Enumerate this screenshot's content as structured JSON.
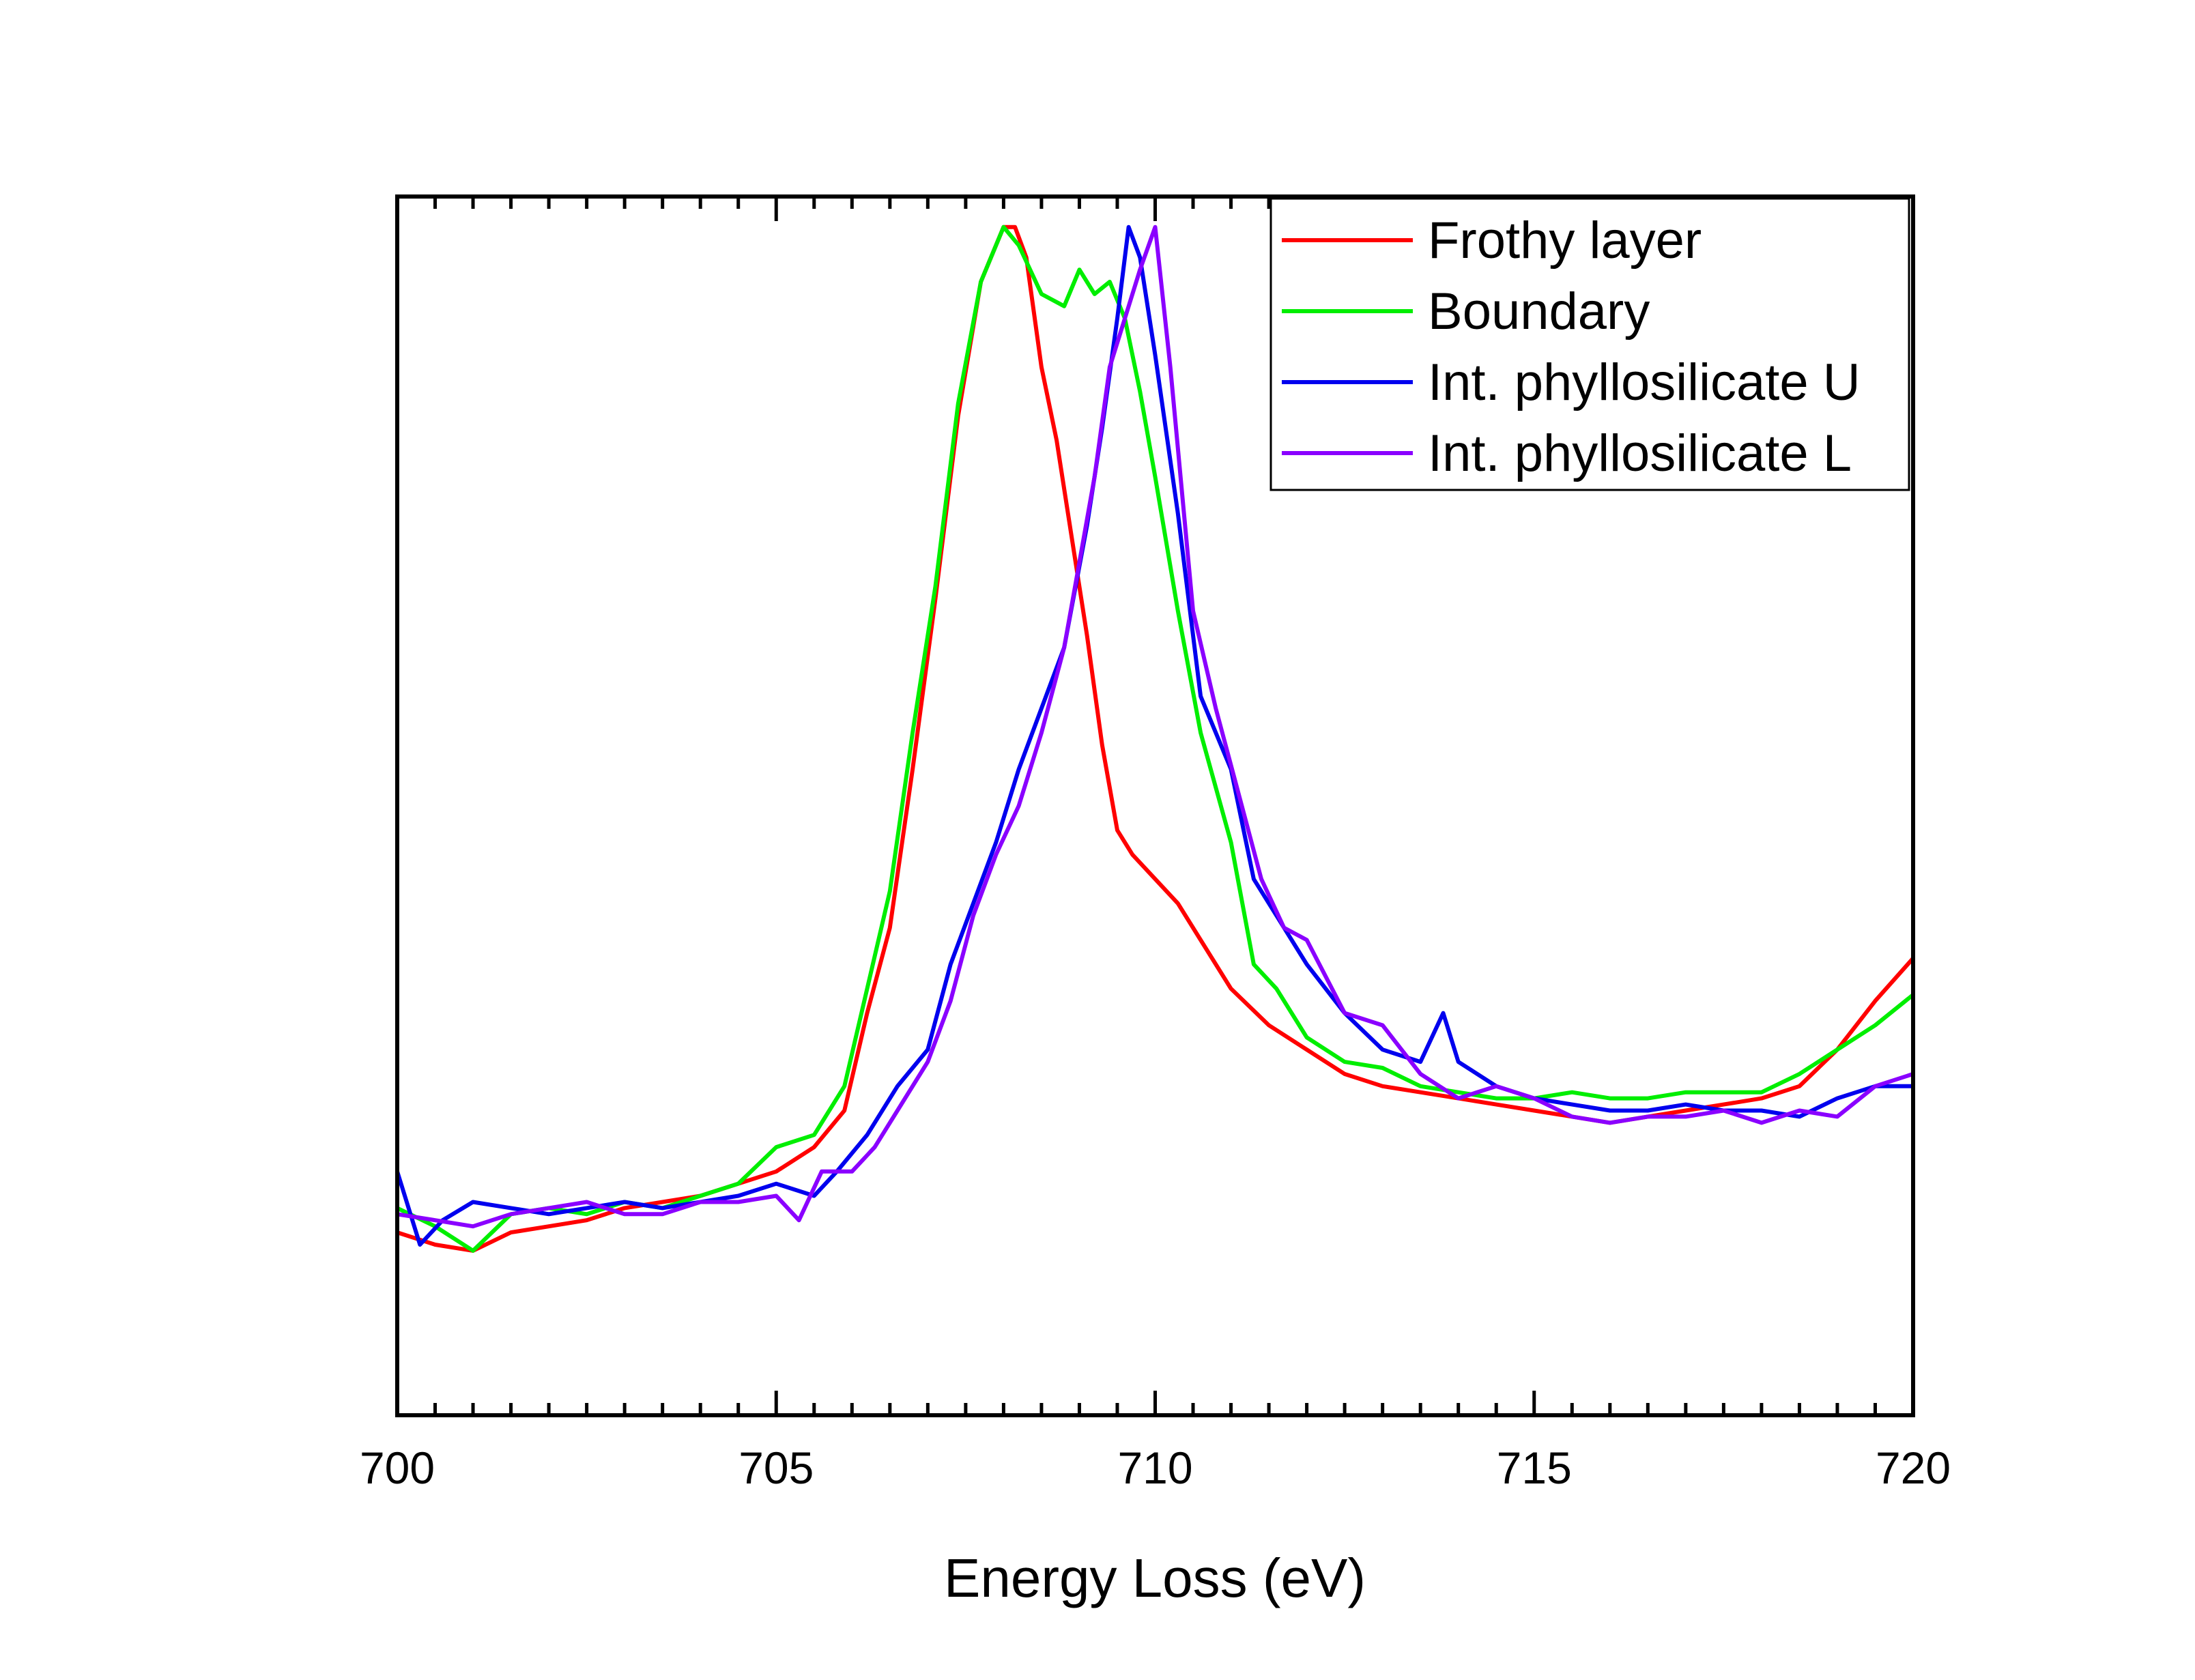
{
  "chart_data": {
    "type": "line",
    "title": "",
    "xlabel": "Energy Loss (eV)",
    "ylabel": "",
    "xlim": [
      700,
      720
    ],
    "ylim": [
      0,
      1
    ],
    "x_ticks": [
      "700",
      "705",
      "710",
      "715",
      "720"
    ],
    "x_tick_values": [
      700,
      705,
      710,
      715,
      720
    ],
    "grid": false,
    "legend_position": "top-right",
    "series": [
      {
        "name": "Frothy layer",
        "color": "#ff0000",
        "points": [
          [
            700,
            0.15
          ],
          [
            700.5,
            0.14
          ],
          [
            701,
            0.135
          ],
          [
            701.5,
            0.15
          ],
          [
            702,
            0.155
          ],
          [
            702.5,
            0.16
          ],
          [
            703,
            0.17
          ],
          [
            703.5,
            0.175
          ],
          [
            704,
            0.18
          ],
          [
            704.5,
            0.19
          ],
          [
            705,
            0.2
          ],
          [
            705.5,
            0.22
          ],
          [
            705.9,
            0.25
          ],
          [
            706.2,
            0.33
          ],
          [
            706.5,
            0.4
          ],
          [
            706.8,
            0.53
          ],
          [
            707.1,
            0.67
          ],
          [
            707.4,
            0.82
          ],
          [
            707.7,
            0.93
          ],
          [
            708.0,
            0.975
          ],
          [
            708.15,
            0.975
          ],
          [
            708.3,
            0.95
          ],
          [
            708.5,
            0.86
          ],
          [
            708.7,
            0.8
          ],
          [
            708.9,
            0.72
          ],
          [
            709.1,
            0.64
          ],
          [
            709.3,
            0.55
          ],
          [
            709.5,
            0.48
          ],
          [
            709.7,
            0.46
          ],
          [
            710.0,
            0.44
          ],
          [
            710.3,
            0.42
          ],
          [
            710.6,
            0.39
          ],
          [
            711.0,
            0.35
          ],
          [
            711.5,
            0.32
          ],
          [
            712.0,
            0.3
          ],
          [
            712.5,
            0.28
          ],
          [
            713.0,
            0.27
          ],
          [
            713.5,
            0.265
          ],
          [
            714.0,
            0.26
          ],
          [
            714.5,
            0.255
          ],
          [
            715.0,
            0.25
          ],
          [
            715.5,
            0.245
          ],
          [
            716.0,
            0.24
          ],
          [
            716.5,
            0.245
          ],
          [
            717.0,
            0.25
          ],
          [
            717.5,
            0.255
          ],
          [
            718.0,
            0.26
          ],
          [
            718.5,
            0.27
          ],
          [
            719.0,
            0.3
          ],
          [
            719.5,
            0.34
          ],
          [
            720,
            0.375
          ]
        ]
      },
      {
        "name": "Boundary",
        "color": "#00ee00",
        "points": [
          [
            700,
            0.17
          ],
          [
            700.5,
            0.155
          ],
          [
            701,
            0.135
          ],
          [
            701.5,
            0.165
          ],
          [
            702,
            0.17
          ],
          [
            702.5,
            0.165
          ],
          [
            703,
            0.175
          ],
          [
            703.5,
            0.17
          ],
          [
            704,
            0.18
          ],
          [
            704.5,
            0.19
          ],
          [
            705,
            0.22
          ],
          [
            705.5,
            0.23
          ],
          [
            705.9,
            0.27
          ],
          [
            706.2,
            0.35
          ],
          [
            706.5,
            0.43
          ],
          [
            706.8,
            0.56
          ],
          [
            707.1,
            0.68
          ],
          [
            707.4,
            0.83
          ],
          [
            707.7,
            0.93
          ],
          [
            708.0,
            0.975
          ],
          [
            708.2,
            0.96
          ],
          [
            708.5,
            0.92
          ],
          [
            708.8,
            0.91
          ],
          [
            709.0,
            0.94
          ],
          [
            709.2,
            0.92
          ],
          [
            709.4,
            0.93
          ],
          [
            709.6,
            0.9
          ],
          [
            709.8,
            0.84
          ],
          [
            710.0,
            0.77
          ],
          [
            710.3,
            0.66
          ],
          [
            710.6,
            0.56
          ],
          [
            711.0,
            0.47
          ],
          [
            711.3,
            0.37
          ],
          [
            711.6,
            0.35
          ],
          [
            712.0,
            0.31
          ],
          [
            712.5,
            0.29
          ],
          [
            713.0,
            0.285
          ],
          [
            713.5,
            0.27
          ],
          [
            714.0,
            0.265
          ],
          [
            714.5,
            0.26
          ],
          [
            715.0,
            0.26
          ],
          [
            715.5,
            0.265
          ],
          [
            716.0,
            0.26
          ],
          [
            716.5,
            0.26
          ],
          [
            717.0,
            0.265
          ],
          [
            717.5,
            0.265
          ],
          [
            718.0,
            0.265
          ],
          [
            718.5,
            0.28
          ],
          [
            719.0,
            0.3
          ],
          [
            719.5,
            0.32
          ],
          [
            720,
            0.345
          ]
        ]
      },
      {
        "name": "Int. phyllosilicate U",
        "color": "#0000ee",
        "points": [
          [
            700,
            0.2
          ],
          [
            700.3,
            0.14
          ],
          [
            700.6,
            0.16
          ],
          [
            701,
            0.175
          ],
          [
            701.5,
            0.17
          ],
          [
            702,
            0.165
          ],
          [
            702.5,
            0.17
          ],
          [
            703,
            0.175
          ],
          [
            703.5,
            0.17
          ],
          [
            704,
            0.175
          ],
          [
            704.5,
            0.18
          ],
          [
            705,
            0.19
          ],
          [
            705.5,
            0.18
          ],
          [
            705.8,
            0.2
          ],
          [
            706.2,
            0.23
          ],
          [
            706.6,
            0.27
          ],
          [
            707.0,
            0.3
          ],
          [
            707.3,
            0.37
          ],
          [
            707.6,
            0.42
          ],
          [
            707.9,
            0.47
          ],
          [
            708.2,
            0.53
          ],
          [
            708.5,
            0.58
          ],
          [
            708.8,
            0.63
          ],
          [
            709.1,
            0.73
          ],
          [
            709.3,
            0.81
          ],
          [
            709.5,
            0.9
          ],
          [
            709.65,
            0.975
          ],
          [
            709.8,
            0.95
          ],
          [
            710.0,
            0.87
          ],
          [
            710.3,
            0.74
          ],
          [
            710.6,
            0.59
          ],
          [
            711.0,
            0.53
          ],
          [
            711.3,
            0.44
          ],
          [
            711.6,
            0.41
          ],
          [
            712.0,
            0.37
          ],
          [
            712.5,
            0.33
          ],
          [
            713.0,
            0.3
          ],
          [
            713.5,
            0.29
          ],
          [
            713.8,
            0.33
          ],
          [
            714.0,
            0.29
          ],
          [
            714.5,
            0.27
          ],
          [
            715.0,
            0.26
          ],
          [
            715.5,
            0.255
          ],
          [
            716.0,
            0.25
          ],
          [
            716.5,
            0.25
          ],
          [
            717.0,
            0.255
          ],
          [
            717.5,
            0.25
          ],
          [
            718.0,
            0.25
          ],
          [
            718.5,
            0.245
          ],
          [
            719.0,
            0.26
          ],
          [
            719.5,
            0.27
          ],
          [
            720,
            0.27
          ]
        ]
      },
      {
        "name": "Int. phyllosilicate L",
        "color": "#8a00ff",
        "points": [
          [
            700,
            0.165
          ],
          [
            700.5,
            0.16
          ],
          [
            701,
            0.155
          ],
          [
            701.5,
            0.165
          ],
          [
            702,
            0.17
          ],
          [
            702.5,
            0.175
          ],
          [
            703,
            0.165
          ],
          [
            703.5,
            0.165
          ],
          [
            704,
            0.175
          ],
          [
            704.5,
            0.175
          ],
          [
            705,
            0.18
          ],
          [
            705.3,
            0.16
          ],
          [
            705.6,
            0.2
          ],
          [
            706.0,
            0.2
          ],
          [
            706.3,
            0.22
          ],
          [
            706.6,
            0.25
          ],
          [
            707.0,
            0.29
          ],
          [
            707.3,
            0.34
          ],
          [
            707.6,
            0.41
          ],
          [
            707.9,
            0.46
          ],
          [
            708.2,
            0.5
          ],
          [
            708.5,
            0.56
          ],
          [
            708.8,
            0.63
          ],
          [
            709.0,
            0.7
          ],
          [
            709.2,
            0.77
          ],
          [
            709.4,
            0.86
          ],
          [
            709.6,
            0.9
          ],
          [
            709.8,
            0.94
          ],
          [
            710.0,
            0.975
          ],
          [
            710.2,
            0.86
          ],
          [
            710.5,
            0.66
          ],
          [
            710.8,
            0.58
          ],
          [
            711.1,
            0.51
          ],
          [
            711.4,
            0.44
          ],
          [
            711.7,
            0.4
          ],
          [
            712.0,
            0.39
          ],
          [
            712.5,
            0.33
          ],
          [
            713.0,
            0.32
          ],
          [
            713.5,
            0.28
          ],
          [
            714.0,
            0.26
          ],
          [
            714.5,
            0.27
          ],
          [
            715.0,
            0.26
          ],
          [
            715.5,
            0.245
          ],
          [
            716.0,
            0.24
          ],
          [
            716.5,
            0.245
          ],
          [
            717.0,
            0.245
          ],
          [
            717.5,
            0.25
          ],
          [
            718.0,
            0.24
          ],
          [
            718.5,
            0.25
          ],
          [
            719.0,
            0.245
          ],
          [
            719.5,
            0.27
          ],
          [
            720,
            0.28
          ]
        ]
      }
    ]
  }
}
